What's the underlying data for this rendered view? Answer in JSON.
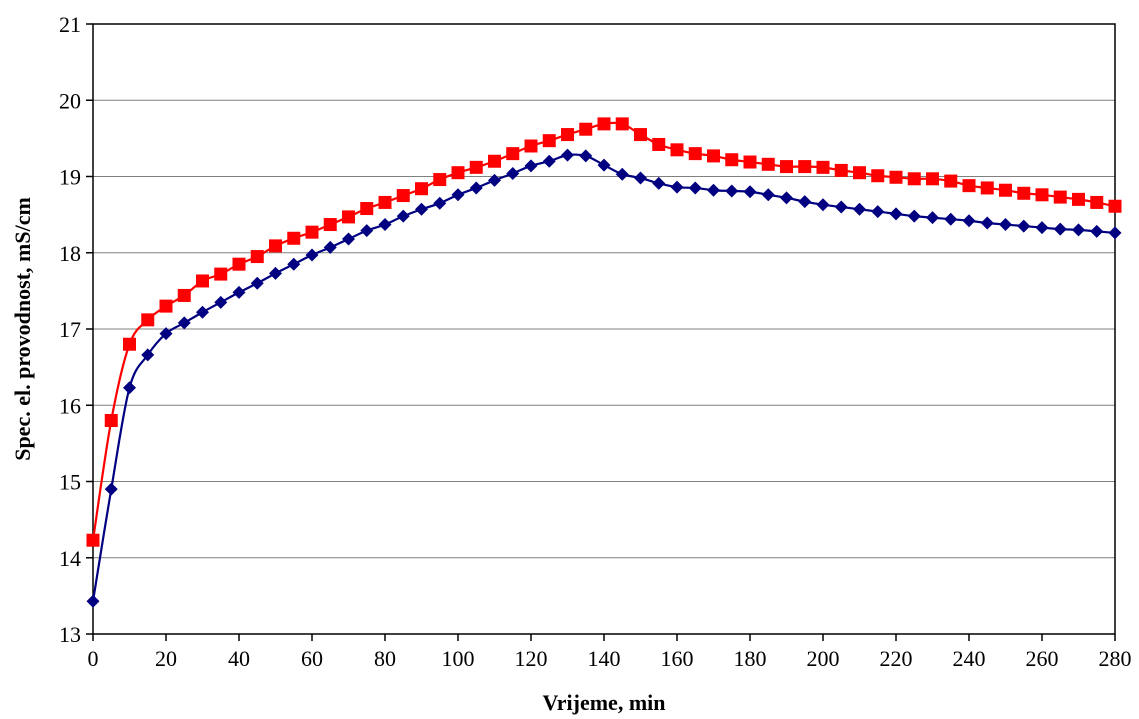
{
  "chart_data": {
    "type": "line",
    "title": "",
    "xlabel": "Vrijeme, min",
    "ylabel": "Spec. el. provodnost, mS/cm",
    "xlim": [
      0,
      280
    ],
    "ylim": [
      13,
      21
    ],
    "xticks": [
      0,
      20,
      40,
      60,
      80,
      100,
      120,
      140,
      160,
      180,
      200,
      220,
      240,
      260,
      280
    ],
    "yticks": [
      13,
      14,
      15,
      16,
      17,
      18,
      19,
      20,
      21
    ],
    "grid": "horizontal",
    "legend": "none",
    "x": [
      0,
      5,
      10,
      15,
      20,
      25,
      30,
      35,
      40,
      45,
      50,
      55,
      60,
      65,
      70,
      75,
      80,
      85,
      90,
      95,
      100,
      105,
      110,
      115,
      120,
      125,
      130,
      135,
      140,
      145,
      150,
      155,
      160,
      165,
      170,
      175,
      180,
      185,
      190,
      195,
      200,
      205,
      210,
      215,
      220,
      225,
      230,
      235,
      240,
      245,
      250,
      255,
      260,
      265,
      270,
      275,
      280
    ],
    "series": [
      {
        "color": "#ff0000",
        "marker": "square",
        "values": [
          14.23,
          15.8,
          16.8,
          17.12,
          17.3,
          17.44,
          17.63,
          17.72,
          17.85,
          17.95,
          18.09,
          18.19,
          18.27,
          18.37,
          18.47,
          18.58,
          18.66,
          18.75,
          18.84,
          18.96,
          19.05,
          19.12,
          19.2,
          19.3,
          19.4,
          19.47,
          19.55,
          19.62,
          19.69,
          19.69,
          19.55,
          19.42,
          19.35,
          19.3,
          19.27,
          19.22,
          19.19,
          19.16,
          19.13,
          19.13,
          19.12,
          19.08,
          19.05,
          19.01,
          18.99,
          18.97,
          18.97,
          18.94,
          18.88,
          18.85,
          18.82,
          18.78,
          18.76,
          18.73,
          18.7,
          18.66,
          18.61
        ]
      },
      {
        "color": "#000080",
        "marker": "diamond",
        "values": [
          13.43,
          14.9,
          16.23,
          16.66,
          16.94,
          17.08,
          17.22,
          17.35,
          17.48,
          17.6,
          17.73,
          17.85,
          17.97,
          18.07,
          18.18,
          18.29,
          18.37,
          18.48,
          18.57,
          18.65,
          18.76,
          18.85,
          18.95,
          19.04,
          19.14,
          19.2,
          19.28,
          19.27,
          19.15,
          19.03,
          18.98,
          18.91,
          18.86,
          18.85,
          18.82,
          18.81,
          18.8,
          18.76,
          18.72,
          18.67,
          18.63,
          18.6,
          18.57,
          18.54,
          18.51,
          18.48,
          18.46,
          18.44,
          18.42,
          18.39,
          18.37,
          18.35,
          18.33,
          18.31,
          18.3,
          18.28,
          18.26
        ]
      }
    ]
  }
}
